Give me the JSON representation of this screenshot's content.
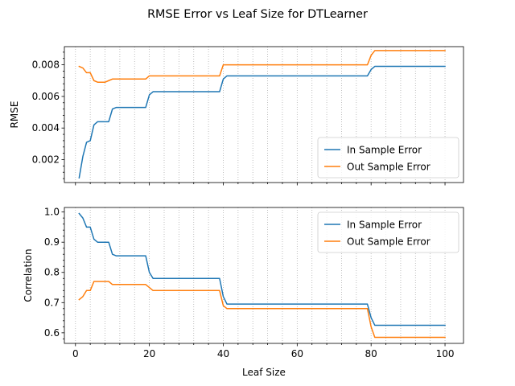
{
  "figure_title": "RMSE Error vs Leaf Size for DTLearner",
  "colors": {
    "in_sample": "#1f77b4",
    "out_sample": "#ff7f0e"
  },
  "chart_data": [
    {
      "type": "line",
      "title": "",
      "xlabel": "",
      "ylabel": "RMSE",
      "xlim": [
        -3,
        105
      ],
      "ylim": [
        0.00055,
        0.00915
      ],
      "xticks": [
        0,
        20,
        40,
        60,
        80,
        100
      ],
      "xticklabels_visible": false,
      "yticks": [
        0.002,
        0.004,
        0.006,
        0.008
      ],
      "ytick_labels": [
        "0.002",
        "0.004",
        "0.006",
        "0.008"
      ],
      "ytick_decimals": 3,
      "grid": "x-minor-dotted",
      "legend": "lower-right",
      "x": [
        1,
        2,
        3,
        4,
        5,
        6,
        7,
        8,
        9,
        10,
        11,
        12,
        13,
        14,
        15,
        16,
        17,
        18,
        19,
        20,
        21,
        22,
        23,
        24,
        25,
        26,
        27,
        28,
        29,
        30,
        31,
        32,
        33,
        34,
        35,
        36,
        37,
        38,
        39,
        40,
        41,
        42,
        43,
        44,
        45,
        46,
        47,
        48,
        49,
        50,
        51,
        52,
        53,
        54,
        55,
        56,
        57,
        58,
        59,
        60,
        61,
        62,
        63,
        64,
        65,
        66,
        67,
        68,
        69,
        70,
        71,
        72,
        73,
        74,
        75,
        76,
        77,
        78,
        79,
        80,
        81,
        82,
        83,
        84,
        85,
        86,
        87,
        88,
        89,
        90,
        91,
        92,
        93,
        94,
        95,
        96,
        97,
        98,
        99,
        100
      ],
      "series": [
        {
          "name": "In Sample Error",
          "color": "#1f77b4",
          "values": [
            0.00085,
            0.0022,
            0.0031,
            0.0032,
            0.0042,
            0.0044,
            0.0044,
            0.0044,
            0.0044,
            0.0052,
            0.0053,
            0.0053,
            0.0053,
            0.0053,
            0.0053,
            0.0053,
            0.0053,
            0.0053,
            0.0053,
            0.0061,
            0.0063,
            0.0063,
            0.0063,
            0.0063,
            0.0063,
            0.0063,
            0.0063,
            0.0063,
            0.0063,
            0.0063,
            0.0063,
            0.0063,
            0.0063,
            0.0063,
            0.0063,
            0.0063,
            0.0063,
            0.0063,
            0.0063,
            0.0071,
            0.0073,
            0.0073,
            0.0073,
            0.0073,
            0.0073,
            0.0073,
            0.0073,
            0.0073,
            0.0073,
            0.0073,
            0.0073,
            0.0073,
            0.0073,
            0.0073,
            0.0073,
            0.0073,
            0.0073,
            0.0073,
            0.0073,
            0.0073,
            0.0073,
            0.0073,
            0.0073,
            0.0073,
            0.0073,
            0.0073,
            0.0073,
            0.0073,
            0.0073,
            0.0073,
            0.0073,
            0.0073,
            0.0073,
            0.0073,
            0.0073,
            0.0073,
            0.0073,
            0.0073,
            0.0073,
            0.0077,
            0.0079,
            0.0079,
            0.0079,
            0.0079,
            0.0079,
            0.0079,
            0.0079,
            0.0079,
            0.0079,
            0.0079,
            0.0079,
            0.0079,
            0.0079,
            0.0079,
            0.0079,
            0.0079,
            0.0079,
            0.0079,
            0.0079,
            0.0079
          ]
        },
        {
          "name": "Out Sample Error",
          "color": "#ff7f0e",
          "values": [
            0.0079,
            0.0078,
            0.0075,
            0.0075,
            0.007,
            0.0069,
            0.0069,
            0.0069,
            0.007,
            0.0071,
            0.0071,
            0.0071,
            0.0071,
            0.0071,
            0.0071,
            0.0071,
            0.0071,
            0.0071,
            0.0071,
            0.0073,
            0.0073,
            0.0073,
            0.0073,
            0.0073,
            0.0073,
            0.0073,
            0.0073,
            0.0073,
            0.0073,
            0.0073,
            0.0073,
            0.0073,
            0.0073,
            0.0073,
            0.0073,
            0.0073,
            0.0073,
            0.0073,
            0.0073,
            0.008,
            0.008,
            0.008,
            0.008,
            0.008,
            0.008,
            0.008,
            0.008,
            0.008,
            0.008,
            0.008,
            0.008,
            0.008,
            0.008,
            0.008,
            0.008,
            0.008,
            0.008,
            0.008,
            0.008,
            0.008,
            0.008,
            0.008,
            0.008,
            0.008,
            0.008,
            0.008,
            0.008,
            0.008,
            0.008,
            0.008,
            0.008,
            0.008,
            0.008,
            0.008,
            0.008,
            0.008,
            0.008,
            0.008,
            0.008,
            0.0086,
            0.0089,
            0.0089,
            0.0089,
            0.0089,
            0.0089,
            0.0089,
            0.0089,
            0.0089,
            0.0089,
            0.0089,
            0.0089,
            0.0089,
            0.0089,
            0.0089,
            0.0089,
            0.0089,
            0.0089,
            0.0089,
            0.0089,
            0.0089
          ]
        }
      ]
    },
    {
      "type": "line",
      "title": "",
      "xlabel": "Leaf Size",
      "ylabel": "Correlation",
      "xlim": [
        -3,
        105
      ],
      "ylim": [
        0.565,
        1.015
      ],
      "xticks": [
        0,
        20,
        40,
        60,
        80,
        100
      ],
      "xtick_labels": [
        "0",
        "20",
        "40",
        "60",
        "80",
        "100"
      ],
      "xticklabels_visible": true,
      "yticks": [
        0.6,
        0.7,
        0.8,
        0.9,
        1.0
      ],
      "ytick_labels": [
        "0.6",
        "0.7",
        "0.8",
        "0.9",
        "1.0"
      ],
      "ytick_decimals": 1,
      "grid": "x-minor-dotted",
      "legend": "upper-right",
      "x": [
        1,
        2,
        3,
        4,
        5,
        6,
        7,
        8,
        9,
        10,
        11,
        12,
        13,
        14,
        15,
        16,
        17,
        18,
        19,
        20,
        21,
        22,
        23,
        24,
        25,
        26,
        27,
        28,
        29,
        30,
        31,
        32,
        33,
        34,
        35,
        36,
        37,
        38,
        39,
        40,
        41,
        42,
        43,
        44,
        45,
        46,
        47,
        48,
        49,
        50,
        51,
        52,
        53,
        54,
        55,
        56,
        57,
        58,
        59,
        60,
        61,
        62,
        63,
        64,
        65,
        66,
        67,
        68,
        69,
        70,
        71,
        72,
        73,
        74,
        75,
        76,
        77,
        78,
        79,
        80,
        81,
        82,
        83,
        84,
        85,
        86,
        87,
        88,
        89,
        90,
        91,
        92,
        93,
        94,
        95,
        96,
        97,
        98,
        99,
        100
      ],
      "series": [
        {
          "name": "In Sample Error",
          "color": "#1f77b4",
          "values": [
            0.995,
            0.98,
            0.95,
            0.95,
            0.91,
            0.9,
            0.9,
            0.9,
            0.9,
            0.86,
            0.855,
            0.855,
            0.855,
            0.855,
            0.855,
            0.855,
            0.855,
            0.855,
            0.855,
            0.8,
            0.78,
            0.78,
            0.78,
            0.78,
            0.78,
            0.78,
            0.78,
            0.78,
            0.78,
            0.78,
            0.78,
            0.78,
            0.78,
            0.78,
            0.78,
            0.78,
            0.78,
            0.78,
            0.78,
            0.72,
            0.695,
            0.695,
            0.695,
            0.695,
            0.695,
            0.695,
            0.695,
            0.695,
            0.695,
            0.695,
            0.695,
            0.695,
            0.695,
            0.695,
            0.695,
            0.695,
            0.695,
            0.695,
            0.695,
            0.695,
            0.695,
            0.695,
            0.695,
            0.695,
            0.695,
            0.695,
            0.695,
            0.695,
            0.695,
            0.695,
            0.695,
            0.695,
            0.695,
            0.695,
            0.695,
            0.695,
            0.695,
            0.695,
            0.695,
            0.65,
            0.625,
            0.625,
            0.625,
            0.625,
            0.625,
            0.625,
            0.625,
            0.625,
            0.625,
            0.625,
            0.625,
            0.625,
            0.625,
            0.625,
            0.625,
            0.625,
            0.625,
            0.625,
            0.625,
            0.625
          ]
        },
        {
          "name": "Out Sample Error",
          "color": "#ff7f0e",
          "values": [
            0.71,
            0.72,
            0.74,
            0.74,
            0.77,
            0.77,
            0.77,
            0.77,
            0.77,
            0.76,
            0.76,
            0.76,
            0.76,
            0.76,
            0.76,
            0.76,
            0.76,
            0.76,
            0.76,
            0.75,
            0.74,
            0.74,
            0.74,
            0.74,
            0.74,
            0.74,
            0.74,
            0.74,
            0.74,
            0.74,
            0.74,
            0.74,
            0.74,
            0.74,
            0.74,
            0.74,
            0.74,
            0.74,
            0.74,
            0.69,
            0.68,
            0.68,
            0.68,
            0.68,
            0.68,
            0.68,
            0.68,
            0.68,
            0.68,
            0.68,
            0.68,
            0.68,
            0.68,
            0.68,
            0.68,
            0.68,
            0.68,
            0.68,
            0.68,
            0.68,
            0.68,
            0.68,
            0.68,
            0.68,
            0.68,
            0.68,
            0.68,
            0.68,
            0.68,
            0.68,
            0.68,
            0.68,
            0.68,
            0.68,
            0.68,
            0.68,
            0.68,
            0.68,
            0.68,
            0.62,
            0.585,
            0.585,
            0.585,
            0.585,
            0.585,
            0.585,
            0.585,
            0.585,
            0.585,
            0.585,
            0.585,
            0.585,
            0.585,
            0.585,
            0.585,
            0.585,
            0.585,
            0.585,
            0.585,
            0.585
          ]
        }
      ]
    }
  ]
}
